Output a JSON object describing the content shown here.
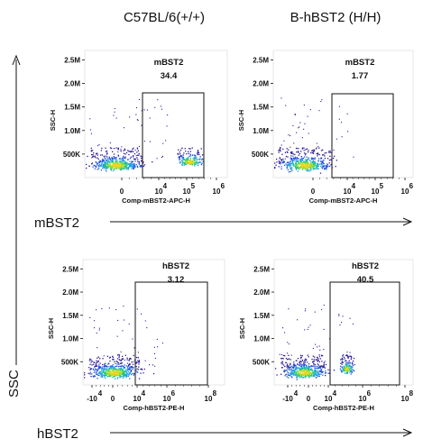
{
  "column_titles": [
    "C57BL/6(+/+)",
    "B-hBST2 (H/H)"
  ],
  "row_labels": [
    "mBST2",
    "hBST2"
  ],
  "y_axis_label": "SSC",
  "chart_data": [
    {
      "type": "scatter",
      "name": "C57BL/6(+/+) mBST2",
      "xlabel": "Comp-mBST2-APC-H",
      "ylabel": "SSC-H",
      "x_ticks": [
        "0",
        "10",
        "10",
        "10"
      ],
      "x_tick_exp": [
        "",
        "4",
        "5",
        "6"
      ],
      "y_ticks": [
        "500K",
        "1.0M",
        "1.5M",
        "2.0M",
        "2.5M"
      ],
      "gate": {
        "name": "mBST2",
        "value": "34.4"
      },
      "populations": [
        {
          "label": "negative",
          "x": 0.5,
          "y": 200000
        },
        {
          "label": "positive",
          "x": 4.9,
          "y": 250000
        }
      ]
    },
    {
      "type": "scatter",
      "name": "B-hBST2 (H/H) mBST2",
      "xlabel": "Comp-mBST2-APC-H",
      "ylabel": "SSC-H",
      "x_ticks": [
        "0",
        "10",
        "10",
        "10"
      ],
      "x_tick_exp": [
        "",
        "4",
        "5",
        "6"
      ],
      "y_ticks": [
        "500K",
        "1.0M",
        "1.5M",
        "2.0M",
        "2.5M"
      ],
      "gate": {
        "name": "mBST2",
        "value": "1.77"
      },
      "populations": [
        {
          "label": "negative",
          "x": 0.5,
          "y": 200000
        }
      ]
    },
    {
      "type": "scatter",
      "name": "C57BL/6(+/+) hBST2",
      "xlabel": "Comp-hBST2-PE-H",
      "ylabel": "SSC-H",
      "x_ticks": [
        "-10",
        "0",
        "10",
        "10",
        "10"
      ],
      "x_tick_exp": [
        "4",
        "",
        "4",
        "6",
        "8"
      ],
      "y_ticks": [
        "500K",
        "1.0M",
        "1.5M",
        "2.0M",
        "2.5M"
      ],
      "gate": {
        "name": "hBST2",
        "value": "3.12"
      },
      "populations": [
        {
          "label": "negative",
          "x": 0.5,
          "y": 200000
        }
      ]
    },
    {
      "type": "scatter",
      "name": "B-hBST2 (H/H) hBST2",
      "xlabel": "Comp-hBST2-PE-H",
      "ylabel": "SSC-H",
      "x_ticks": [
        "-10",
        "0",
        "10",
        "10",
        "10"
      ],
      "x_tick_exp": [
        "4",
        "",
        "4",
        "6",
        "8"
      ],
      "y_ticks": [
        "500K",
        "1.0M",
        "1.5M",
        "2.0M",
        "2.5M"
      ],
      "gate": {
        "name": "hBST2",
        "value": "40.5"
      },
      "populations": [
        {
          "label": "negative",
          "x": 0.5,
          "y": 200000
        },
        {
          "label": "positive",
          "x": 5.0,
          "y": 250000
        }
      ]
    }
  ]
}
